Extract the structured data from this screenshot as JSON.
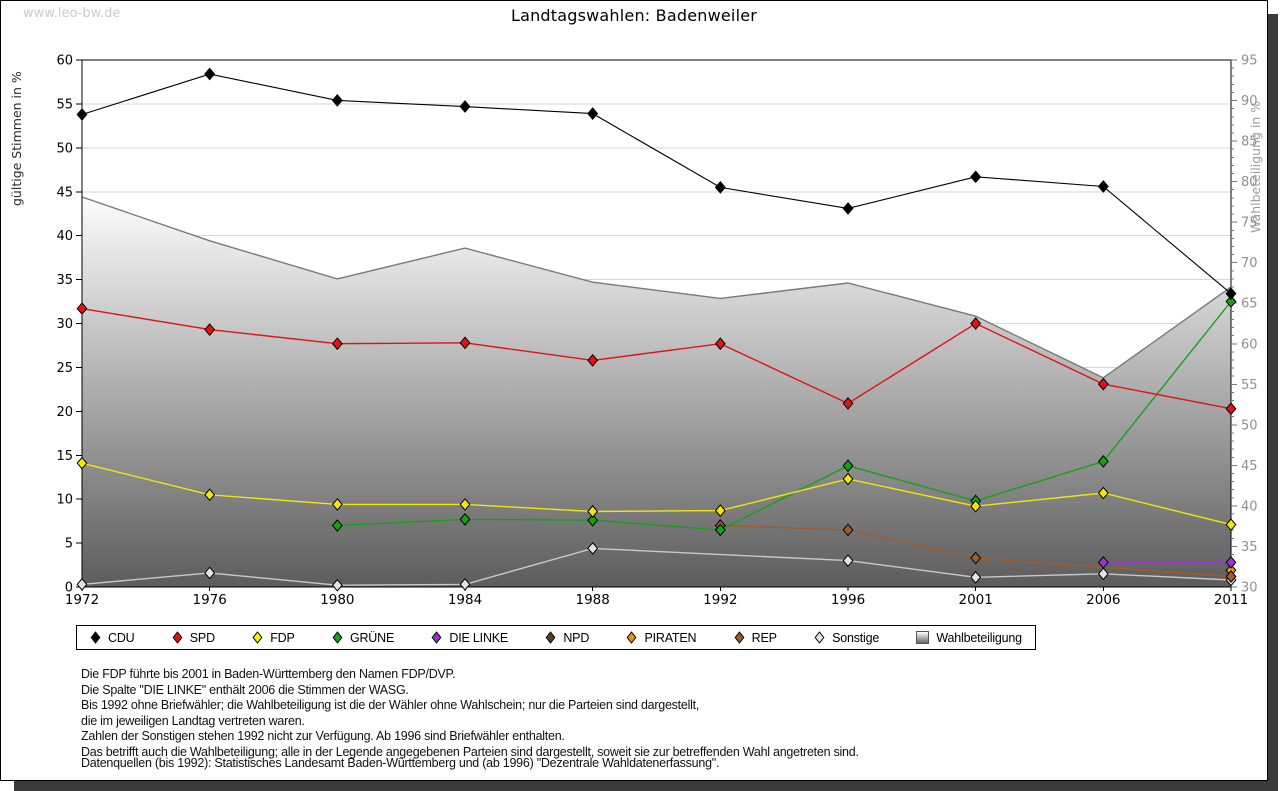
{
  "page": {
    "watermark": "www.leo-bw.de",
    "title": "Landtagswahlen: Badenweiler"
  },
  "chart_data": {
    "type": "line",
    "title": "Landtagswahlen: Badenweiler",
    "x_categories": [
      1972,
      1976,
      1980,
      1984,
      1988,
      1992,
      1996,
      2001,
      2006,
      2011
    ],
    "left_axis": {
      "label": "gültige Stimmen in %",
      "min": 0,
      "max": 60,
      "tick_step": 5
    },
    "right_axis": {
      "label": "Wahlbeteiligung in %",
      "min": 30,
      "max": 95,
      "tick_step": 5
    },
    "grid": true,
    "legend_position": "bottom",
    "series": [
      {
        "name": "Wahlbeteiligung",
        "type": "area",
        "axis": "right",
        "stroke": "#7a7a7a",
        "fill_top": "#fdfdfd",
        "fill_bottom": "#5c5c5c",
        "values": [
          78.1,
          72.7,
          68.0,
          71.8,
          67.6,
          65.6,
          67.5,
          63.4,
          55.8,
          67.0
        ]
      },
      {
        "name": "Sonstige",
        "type": "line",
        "axis": "left",
        "color": "#e4e4e4",
        "line_color": "#c9c9c9",
        "values": [
          0.3,
          1.6,
          0.2,
          0.3,
          4.4,
          null,
          3.0,
          1.1,
          1.5,
          0.8
        ]
      },
      {
        "name": "NPD",
        "type": "line",
        "axis": "left",
        "color": "#55402c",
        "values": [
          null,
          null,
          null,
          null,
          null,
          null,
          null,
          null,
          null,
          null
        ]
      },
      {
        "name": "PIRATEN",
        "type": "line",
        "axis": "left",
        "color": "#e6941e",
        "values": [
          null,
          null,
          null,
          null,
          null,
          null,
          null,
          null,
          null,
          1.9
        ]
      },
      {
        "name": "REP",
        "type": "line",
        "axis": "left",
        "color": "#a05c28",
        "values": [
          null,
          null,
          null,
          null,
          null,
          7.0,
          6.5,
          3.3,
          null,
          1.2
        ]
      },
      {
        "name": "DIE LINKE",
        "type": "line",
        "axis": "left",
        "color": "#9933cc",
        "values": [
          null,
          null,
          null,
          null,
          null,
          null,
          null,
          null,
          2.8,
          2.8
        ]
      },
      {
        "name": "GRÜNE",
        "type": "line",
        "axis": "left",
        "color": "#16a016",
        "values": [
          null,
          null,
          7.0,
          7.7,
          7.6,
          6.5,
          13.8,
          9.8,
          14.3,
          32.5
        ]
      },
      {
        "name": "FDP",
        "type": "line",
        "axis": "left",
        "color": "#f2e50c",
        "values": [
          14.1,
          10.5,
          9.4,
          9.4,
          8.6,
          8.7,
          12.3,
          9.2,
          10.7,
          7.1
        ]
      },
      {
        "name": "SPD",
        "type": "line",
        "axis": "left",
        "color": "#e01414",
        "values": [
          31.7,
          29.3,
          27.7,
          27.8,
          25.8,
          27.7,
          20.9,
          30.0,
          23.1,
          20.3
        ]
      },
      {
        "name": "CDU",
        "type": "line",
        "axis": "left",
        "color": "#000000",
        "values": [
          53.8,
          58.4,
          55.4,
          54.7,
          53.9,
          45.5,
          43.1,
          46.7,
          45.6,
          33.4
        ]
      }
    ]
  },
  "legend": {
    "items": [
      {
        "label": "CDU",
        "color": "#000000",
        "marker": "diamond"
      },
      {
        "label": "SPD",
        "color": "#e01414",
        "marker": "diamond"
      },
      {
        "label": "FDP",
        "color": "#ffef00",
        "marker": "diamond"
      },
      {
        "label": "GRÜNE",
        "color": "#16a016",
        "marker": "diamond"
      },
      {
        "label": "DIE LINKE",
        "color": "#9933cc",
        "marker": "diamond"
      },
      {
        "label": "NPD",
        "color": "#55402c",
        "marker": "diamond"
      },
      {
        "label": "PIRATEN",
        "color": "#e6941e",
        "marker": "diamond"
      },
      {
        "label": "REP",
        "color": "#a05c28",
        "marker": "diamond"
      },
      {
        "label": "Sonstige",
        "color": "#e4e4e4",
        "marker": "diamond"
      },
      {
        "label": "Wahlbeteiligung",
        "color": "#aaaaaa",
        "marker": "square"
      }
    ]
  },
  "footnotes": {
    "lines": [
      "Die FDP führte bis 2001 in Baden-Württemberg den Namen FDP/DVP.",
      "Die Spalte \"DIE LINKE\" enthält 2006 die Stimmen der WASG.",
      "Bis 1992 ohne Briefwähler; die Wahlbeteiligung ist die der Wähler ohne Wahlschein; nur die Parteien sind dargestellt,",
      "die im jeweiligen Landtag vertreten waren.",
      "Zahlen der Sonstigen stehen 1992 nicht zur Verfügung. Ab 1996 sind Briefwähler enthalten.",
      "Das betrifft auch die Wahlbeteiligung; alle in der Legende angegebenen Parteien sind dargestellt, soweit sie zur betreffenden Wahl angetreten sind."
    ],
    "source": "Datenquellen (bis 1992): Statistisches Landesamt Baden-Württemberg und (ab 1996) \"Dezentrale Wahldatenerfassung\"."
  }
}
